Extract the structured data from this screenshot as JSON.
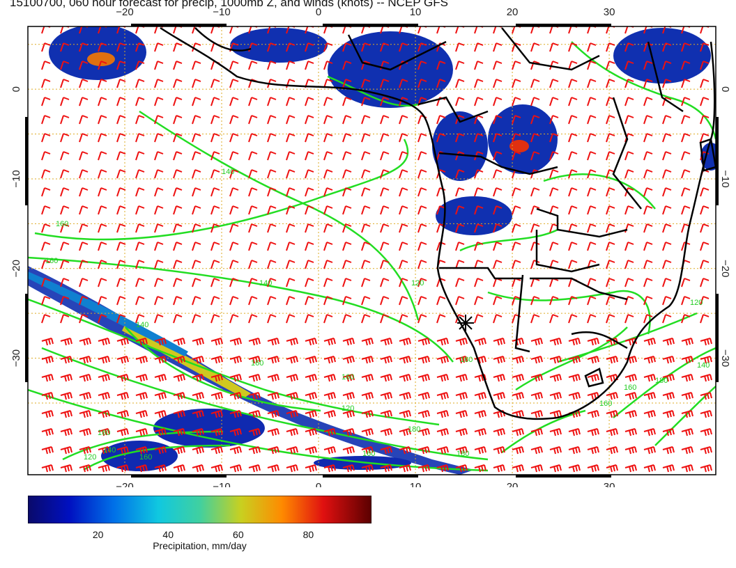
{
  "title": "15100700, 060 hour forecast for precip, 1000mb Z, and winds (knots) -- NCEP GFS",
  "map": {
    "lon_min": -30,
    "lon_max": 41,
    "lat_min": -43,
    "lat_max": 7,
    "lon_ticks": [
      -20,
      -10,
      0,
      10,
      20,
      30
    ],
    "lon_tick_labels": [
      "−20",
      "−10",
      "0",
      "10",
      "20",
      "30"
    ],
    "lat_ticks": [
      0,
      -10,
      -20,
      -30
    ],
    "lat_tick_labels": [
      "0",
      "−10",
      "−20",
      "−30"
    ],
    "contour_labels": [
      "140",
      "160",
      "160",
      "140",
      "120",
      "160",
      "120",
      "160",
      "140",
      "120",
      "160",
      "180",
      "120",
      "160",
      "140",
      "160",
      "140",
      "180",
      "160",
      "160",
      "160",
      "180"
    ],
    "colors": {
      "coast": "#000000",
      "winds": "#ff0000",
      "contours": "#22dd22",
      "grid": "#ddaa22"
    }
  },
  "colorbar": {
    "label": "Precipitation, mm/day",
    "tick_values": [
      20,
      40,
      60,
      80
    ],
    "tick_labels": [
      "20",
      "40",
      "60",
      "80"
    ],
    "min": 0,
    "max": 98
  }
}
